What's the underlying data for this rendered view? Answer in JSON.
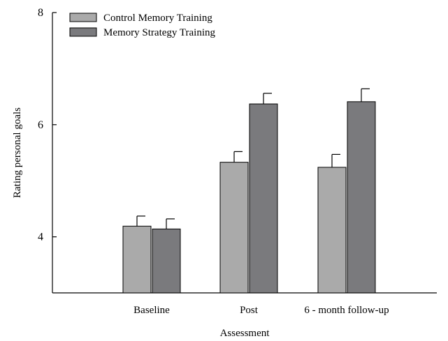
{
  "chart_data": {
    "type": "bar",
    "xlabel": "Assessment",
    "ylabel": "Rating personal goals",
    "ylim": [
      3,
      8
    ],
    "yticks": [
      4,
      6,
      8
    ],
    "categories": [
      "Baseline",
      "Post",
      "6 - month follow-up"
    ],
    "series": [
      {
        "name": "Control Memory Training",
        "values": [
          4.19,
          5.33,
          5.24
        ],
        "error": [
          0.18,
          0.19,
          0.23
        ],
        "color": "#aaaaaa"
      },
      {
        "name": "Memory Strategy Training",
        "values": [
          4.14,
          6.37,
          6.41
        ],
        "error": [
          0.18,
          0.19,
          0.23
        ],
        "color": "#7a7a7d"
      }
    ],
    "legend_position": "top-left",
    "grid": false
  }
}
